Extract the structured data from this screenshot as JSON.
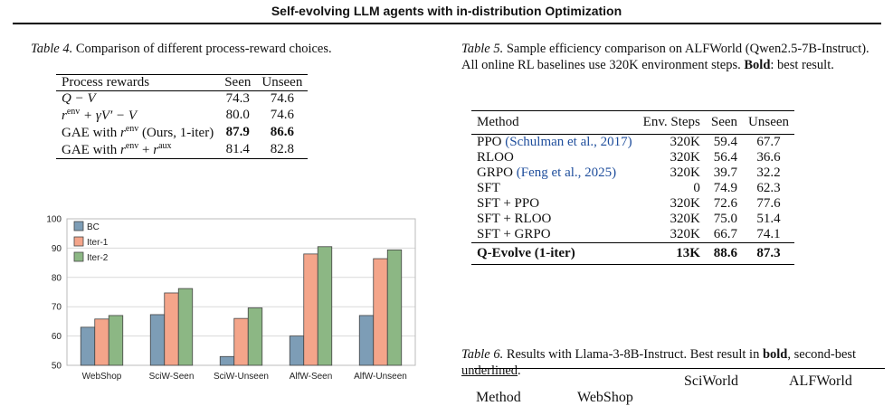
{
  "header": {
    "title": "Self-evolving LLM agents with in-distribution Optimization"
  },
  "table4": {
    "caption_label": "Table 4.",
    "caption_text": " Comparison of different process-reward choices.",
    "columns": [
      "Process rewards",
      "Seen",
      "Unseen"
    ],
    "rows": [
      {
        "method": "Q − V",
        "seen": "74.3",
        "unseen": "74.6"
      },
      {
        "method": "r^env + γV′ − V",
        "seen": "80.0",
        "unseen": "74.6"
      },
      {
        "method_prefix": "GAE with ",
        "method_suffix": " (Ours, 1-iter)",
        "seen": "87.9",
        "unseen": "86.6"
      },
      {
        "method_prefix": "GAE with ",
        "seen": "81.4",
        "unseen": "82.8"
      }
    ]
  },
  "table5": {
    "caption_label": "Table 5.",
    "caption_text": " Sample efficiency comparison on ALFWorld (Qwen2.5-7B-Instruct). All online RL baselines use 320K environment steps.",
    "caption_bold": "Bold",
    "caption_tail": ": best result.",
    "columns": [
      "Method",
      "Env. Steps",
      "Seen",
      "Unseen"
    ],
    "rows": [
      {
        "method": "PPO",
        "cite": "(Schulman et al., 2017)",
        "steps": "320K",
        "seen": "59.4",
        "unseen": "67.7"
      },
      {
        "method": "RLOO",
        "cite": "",
        "steps": "320K",
        "seen": "56.4",
        "unseen": "36.6"
      },
      {
        "method": "GRPO",
        "cite": "(Feng et al., 2025)",
        "steps": "320K",
        "seen": "39.7",
        "unseen": "32.2"
      },
      {
        "method": "SFT",
        "cite": "",
        "steps": "0",
        "seen": "74.9",
        "unseen": "62.3"
      },
      {
        "method": "SFT + PPO",
        "cite": "",
        "steps": "320K",
        "seen": "72.6",
        "unseen": "77.6"
      },
      {
        "method": "SFT + RLOO",
        "cite": "",
        "steps": "320K",
        "seen": "75.0",
        "unseen": "51.4"
      },
      {
        "method": "SFT + GRPO",
        "cite": "",
        "steps": "320K",
        "seen": "66.7",
        "unseen": "74.1"
      }
    ],
    "final_row": {
      "method": "Q-Evolve (1-iter)",
      "steps": "13K",
      "seen": "88.6",
      "unseen": "87.3"
    }
  },
  "table6": {
    "caption_label": "Table 6.",
    "caption_text": " Results with Llama-3-8B-Instruct. Best result in ",
    "caption_bold": "bold",
    "caption_mid": ", second-best ",
    "caption_underlined": "underlined",
    "caption_end": ".",
    "columns": [
      "Method",
      "WebShop",
      "SciWorld",
      "ALFWorld"
    ]
  },
  "chart_data": {
    "type": "bar",
    "categories": [
      "WebShop",
      "SciW-Seen",
      "SciW-Unseen",
      "AlfW-Seen",
      "AlfW-Unseen"
    ],
    "series": [
      {
        "name": "BC",
        "values": [
          63,
          67.3,
          53,
          60,
          67
        ],
        "color": "#7d9db6"
      },
      {
        "name": "Iter-1",
        "values": [
          65.8,
          74.7,
          66,
          88,
          86.4
        ],
        "color": "#f4a58a"
      },
      {
        "name": "Iter-2",
        "values": [
          67,
          76.2,
          69.6,
          90.5,
          89.4
        ],
        "color": "#8cb784"
      }
    ],
    "ylim": [
      50,
      100
    ],
    "yticks": [
      50,
      60,
      70,
      80,
      90,
      100
    ],
    "legend_position": "top-left",
    "grid": true
  }
}
